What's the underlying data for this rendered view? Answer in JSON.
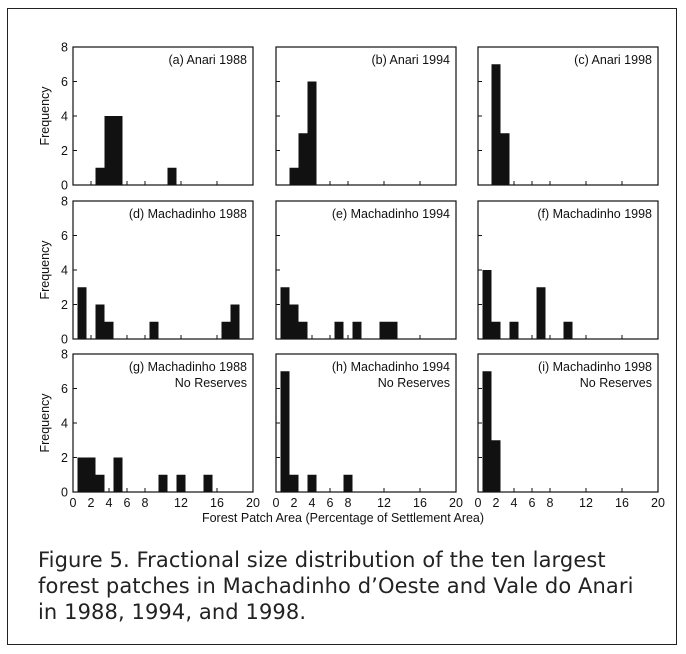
{
  "figure": {
    "caption": "Figure 5. Fractional size distribution of the ten largest forest patches in Machadinho d’Oeste and Vale do Anari in 1988, 1994, and 1998."
  },
  "chart_data": {
    "type": "bar",
    "xlabel": "Forest Patch Area (Percentage of Settlement Area)",
    "ylabel": "Frequency",
    "xlim": [
      0,
      20
    ],
    "ylim": [
      0,
      8
    ],
    "xticks": [
      0,
      2,
      4,
      6,
      8,
      12,
      16,
      20
    ],
    "yticks": [
      0,
      2,
      4,
      6,
      8
    ],
    "bin_width": 1,
    "panels": [
      {
        "id": "a",
        "label_lines": [
          "(a) Anari 1988"
        ],
        "bins": [
          {
            "x": 3,
            "count": 1
          },
          {
            "x": 4,
            "count": 4
          },
          {
            "x": 5,
            "count": 4
          },
          {
            "x": 11,
            "count": 1
          }
        ]
      },
      {
        "id": "d",
        "label_lines": [
          "(d) Machadinho 1988"
        ],
        "bins": [
          {
            "x": 1,
            "count": 3
          },
          {
            "x": 3,
            "count": 2
          },
          {
            "x": 4,
            "count": 1
          },
          {
            "x": 9,
            "count": 1
          },
          {
            "x": 17,
            "count": 1
          },
          {
            "x": 18,
            "count": 2
          }
        ]
      },
      {
        "id": "g",
        "label_lines": [
          "(g) Machadinho 1988",
          "No Reserves"
        ],
        "bins": [
          {
            "x": 1,
            "count": 2
          },
          {
            "x": 2,
            "count": 2
          },
          {
            "x": 3,
            "count": 1
          },
          {
            "x": 5,
            "count": 2
          },
          {
            "x": 10,
            "count": 1
          },
          {
            "x": 12,
            "count": 1
          },
          {
            "x": 15,
            "count": 1
          }
        ]
      },
      {
        "id": "b",
        "label_lines": [
          "(b) Anari 1994"
        ],
        "bins": [
          {
            "x": 2,
            "count": 1
          },
          {
            "x": 3,
            "count": 3
          },
          {
            "x": 4,
            "count": 6
          }
        ]
      },
      {
        "id": "e",
        "label_lines": [
          "(e) Machadinho 1994"
        ],
        "bins": [
          {
            "x": 1,
            "count": 3
          },
          {
            "x": 2,
            "count": 2
          },
          {
            "x": 3,
            "count": 1
          },
          {
            "x": 7,
            "count": 1
          },
          {
            "x": 9,
            "count": 1
          },
          {
            "x": 12,
            "count": 1
          },
          {
            "x": 13,
            "count": 1
          }
        ]
      },
      {
        "id": "h",
        "label_lines": [
          "(h) Machadinho 1994",
          "No Reserves"
        ],
        "bins": [
          {
            "x": 1,
            "count": 7
          },
          {
            "x": 2,
            "count": 1
          },
          {
            "x": 4,
            "count": 1
          },
          {
            "x": 8,
            "count": 1
          }
        ]
      },
      {
        "id": "c",
        "label_lines": [
          "(c) Anari 1998"
        ],
        "bins": [
          {
            "x": 2,
            "count": 7
          },
          {
            "x": 3,
            "count": 3
          }
        ]
      },
      {
        "id": "f",
        "label_lines": [
          "(f) Machadinho 1998"
        ],
        "bins": [
          {
            "x": 1,
            "count": 4
          },
          {
            "x": 2,
            "count": 1
          },
          {
            "x": 4,
            "count": 1
          },
          {
            "x": 7,
            "count": 3
          },
          {
            "x": 10,
            "count": 1
          }
        ]
      },
      {
        "id": "i",
        "label_lines": [
          "(i) Machadinho 1998",
          "No Reserves"
        ],
        "bins": [
          {
            "x": 1,
            "count": 7
          },
          {
            "x": 2,
            "count": 3
          }
        ]
      }
    ]
  }
}
